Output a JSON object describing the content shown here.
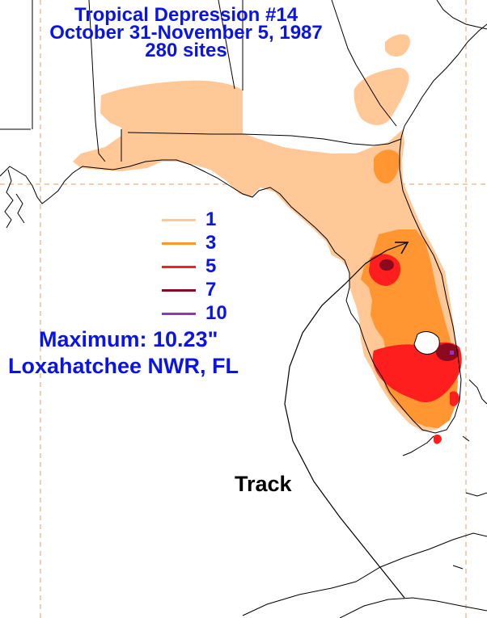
{
  "title": {
    "line1": "Tropical Depression #14",
    "line2": "October 31-November 5, 1987",
    "line3": "280 sites"
  },
  "legend": [
    {
      "label": "1",
      "color": "#ffc896"
    },
    {
      "label": "3",
      "color": "#ff9632"
    },
    {
      "label": "5",
      "color": "#ff1e1e"
    },
    {
      "label": "7",
      "color": "#8c0a1e"
    },
    {
      "label": "10",
      "color": "#9632c8"
    }
  ],
  "maximum": {
    "line1": "Maximum: 10.23\"",
    "line2": "Loxahatchee NWR, FL"
  },
  "track_label": "Track",
  "colors": {
    "text": "#0a14e6",
    "rain_1": "#ffc896",
    "rain_3": "#ff9632",
    "rain_5": "#ff1e1e",
    "rain_7": "#8c0a1e",
    "rain_10": "#9632c8",
    "grid": "#e0a060",
    "coast": "#000000"
  }
}
